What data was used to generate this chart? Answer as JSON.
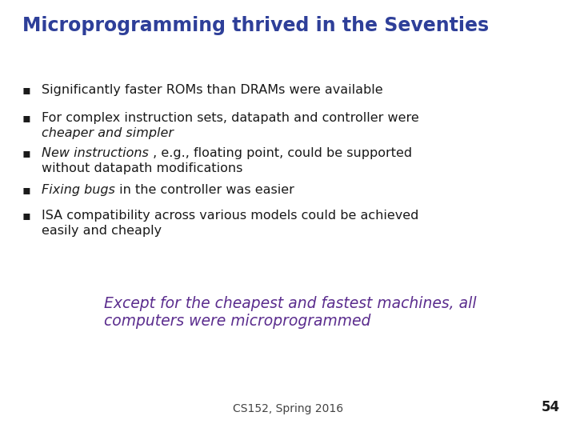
{
  "title": "Microprogramming thrived in the Seventies",
  "title_color": "#2E3F99",
  "title_fontsize": 17,
  "background_color": "#FFFFFF",
  "bullet_color": "#1a1a1a",
  "bullet_fontsize": 11.5,
  "bullet_symbol": "▪",
  "callout_line1": "Except for the cheapest and fastest machines, all",
  "callout_line2": "computers were microprogrammed",
  "callout_color": "#5B2D8E",
  "callout_fontsize": 13.5,
  "footer_text": "CS152, Spring 2016",
  "footer_fontsize": 10,
  "footer_color": "#444444",
  "page_number": "54",
  "page_number_fontsize": 12,
  "page_number_color": "#1a1a1a"
}
